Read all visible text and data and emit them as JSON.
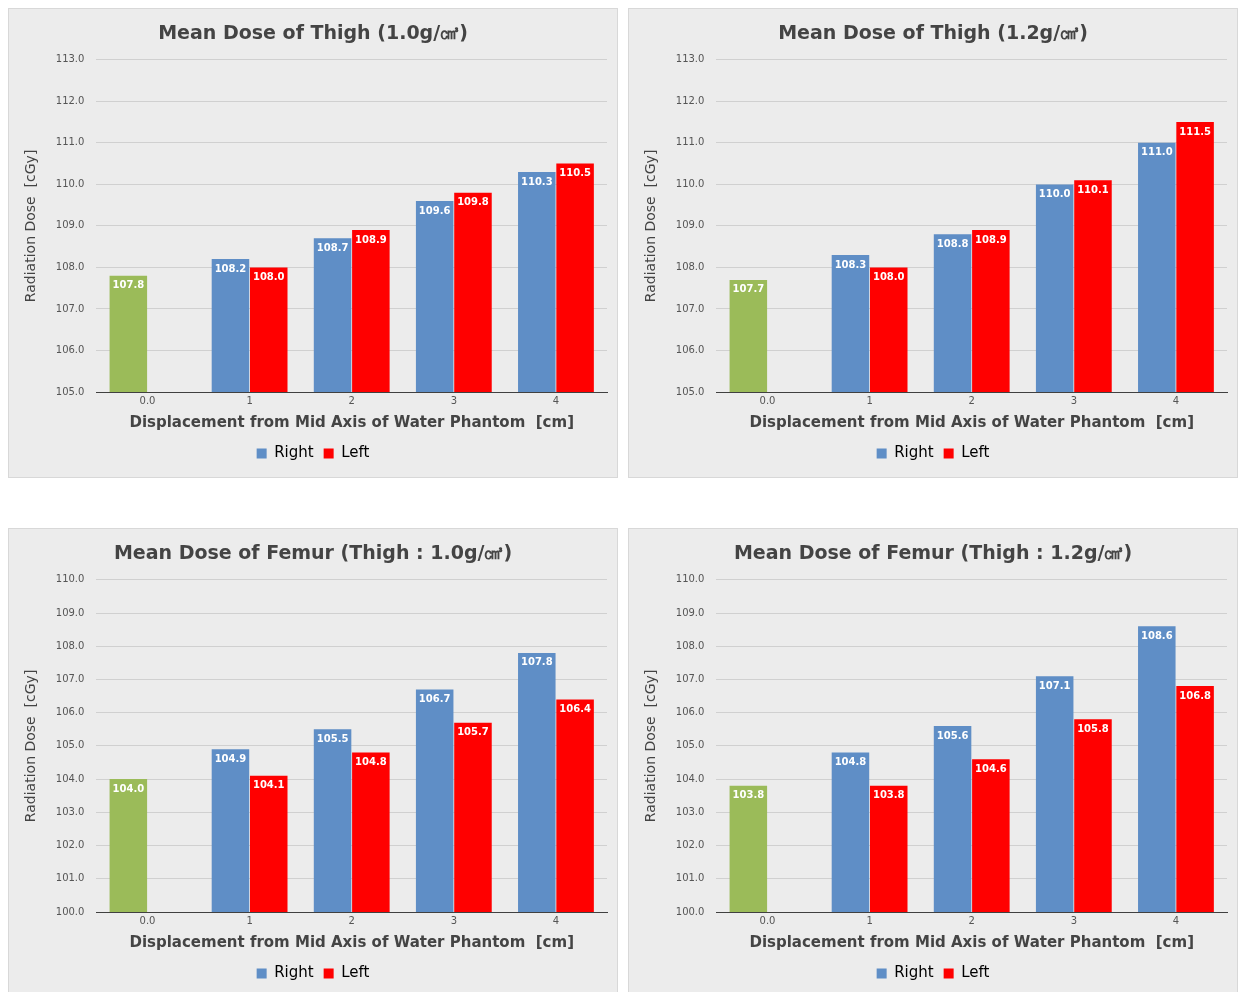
{
  "chart_data": [
    {
      "type": "bar",
      "title": "Mean Dose of Thigh (1.0g/㎤)",
      "xlabel": "Displacement from Mid Axis of Water Phantom  [cm]",
      "ylabel": "Radiation Dose  [cGy]",
      "categories": [
        "0.0",
        "1",
        "2",
        "3",
        "4"
      ],
      "series": [
        {
          "name": "Right",
          "color": "#5f8ec6",
          "colors": [
            "#9bbb59",
            "#5f8ec6",
            "#5f8ec6",
            "#5f8ec6",
            "#5f8ec6"
          ],
          "values": [
            107.8,
            108.2,
            108.7,
            109.6,
            110.3
          ],
          "value_labels": [
            "107.8",
            "108.2",
            "108.7",
            "109.6",
            "110.3"
          ]
        },
        {
          "name": "Left",
          "color": "#ff0000",
          "values": [
            null,
            108.0,
            108.9,
            109.8,
            110.5
          ],
          "value_labels": [
            null,
            "108.0",
            "108.9",
            "109.8",
            "110.5"
          ]
        }
      ],
      "ylim": [
        105,
        113
      ],
      "yticks": [
        {
          "value": 105,
          "label": "105.0"
        },
        {
          "value": 106,
          "label": "106.0"
        },
        {
          "value": 107,
          "label": "107.0"
        },
        {
          "value": 108,
          "label": "108.0"
        },
        {
          "value": 109,
          "label": "109.0"
        },
        {
          "value": 110,
          "label": "110.0"
        },
        {
          "value": 111,
          "label": "111.0"
        },
        {
          "value": 112,
          "label": "112.0"
        },
        {
          "value": 113,
          "label": "113.0"
        }
      ],
      "grid": "y",
      "legend": "bottom"
    },
    {
      "type": "bar",
      "title": "Mean Dose of Thigh (1.2g/㎤)",
      "xlabel": "Displacement from Mid Axis of Water Phantom  [cm]",
      "ylabel": "Radiation Dose  [cGy]",
      "categories": [
        "0.0",
        "1",
        "2",
        "3",
        "4"
      ],
      "series": [
        {
          "name": "Right",
          "color": "#5f8ec6",
          "colors": [
            "#9bbb59",
            "#5f8ec6",
            "#5f8ec6",
            "#5f8ec6",
            "#5f8ec6"
          ],
          "values": [
            107.7,
            108.3,
            108.8,
            110.0,
            111.0
          ],
          "value_labels": [
            "107.7",
            "108.3",
            "108.8",
            "110.0",
            "111.0"
          ]
        },
        {
          "name": "Left",
          "color": "#ff0000",
          "values": [
            null,
            108.0,
            108.9,
            110.1,
            111.5
          ],
          "value_labels": [
            null,
            "108.0",
            "108.9",
            "110.1",
            "111.5"
          ]
        }
      ],
      "ylim": [
        105,
        113
      ],
      "yticks": [
        {
          "value": 105,
          "label": "105.0"
        },
        {
          "value": 106,
          "label": "106.0"
        },
        {
          "value": 107,
          "label": "107.0"
        },
        {
          "value": 108,
          "label": "108.0"
        },
        {
          "value": 109,
          "label": "109.0"
        },
        {
          "value": 110,
          "label": "110.0"
        },
        {
          "value": 111,
          "label": "111.0"
        },
        {
          "value": 112,
          "label": "112.0"
        },
        {
          "value": 113,
          "label": "113.0"
        }
      ],
      "grid": "y",
      "legend": "bottom"
    },
    {
      "type": "bar",
      "title": "Mean Dose of Femur (Thigh : 1.0g/㎤)",
      "xlabel": "Displacement from Mid Axis of Water Phantom  [cm]",
      "ylabel": "Radiation Dose  [cGy]",
      "categories": [
        "0.0",
        "1",
        "2",
        "3",
        "4"
      ],
      "series": [
        {
          "name": "Right",
          "color": "#5f8ec6",
          "colors": [
            "#9bbb59",
            "#5f8ec6",
            "#5f8ec6",
            "#5f8ec6",
            "#5f8ec6"
          ],
          "values": [
            104.0,
            104.9,
            105.5,
            106.7,
            107.8
          ],
          "value_labels": [
            "104.0",
            "104.9",
            "105.5",
            "106.7",
            "107.8"
          ]
        },
        {
          "name": "Left",
          "color": "#ff0000",
          "values": [
            null,
            104.1,
            104.8,
            105.7,
            106.4
          ],
          "value_labels": [
            null,
            "104.1",
            "104.8",
            "105.7",
            "106.4"
          ]
        }
      ],
      "ylim": [
        100,
        110
      ],
      "yticks": [
        {
          "value": 100,
          "label": "100.0"
        },
        {
          "value": 101,
          "label": "101.0"
        },
        {
          "value": 102,
          "label": "102.0"
        },
        {
          "value": 103,
          "label": "103.0"
        },
        {
          "value": 104,
          "label": "104.0"
        },
        {
          "value": 105,
          "label": "105.0"
        },
        {
          "value": 106,
          "label": "106.0"
        },
        {
          "value": 107,
          "label": "107.0"
        },
        {
          "value": 108,
          "label": "108.0"
        },
        {
          "value": 109,
          "label": "109.0"
        },
        {
          "value": 110,
          "label": "110.0"
        }
      ],
      "grid": "y",
      "legend": "bottom"
    },
    {
      "type": "bar",
      "title": "Mean Dose of Femur (Thigh : 1.2g/㎤)",
      "xlabel": "Displacement from Mid Axis of Water Phantom  [cm]",
      "ylabel": "Radiation Dose  [cGy]",
      "categories": [
        "0.0",
        "1",
        "2",
        "3",
        "4"
      ],
      "series": [
        {
          "name": "Right",
          "color": "#5f8ec6",
          "colors": [
            "#9bbb59",
            "#5f8ec6",
            "#5f8ec6",
            "#5f8ec6",
            "#5f8ec6"
          ],
          "values": [
            103.8,
            104.8,
            105.6,
            107.1,
            108.6
          ],
          "value_labels": [
            "103.8",
            "104.8",
            "105.6",
            "107.1",
            "108.6"
          ]
        },
        {
          "name": "Left",
          "color": "#ff0000",
          "values": [
            null,
            103.8,
            104.6,
            105.8,
            106.8
          ],
          "value_labels": [
            null,
            "103.8",
            "104.6",
            "105.8",
            "106.8"
          ]
        }
      ],
      "ylim": [
        100,
        110
      ],
      "yticks": [
        {
          "value": 100,
          "label": "100.0"
        },
        {
          "value": 101,
          "label": "101.0"
        },
        {
          "value": 102,
          "label": "102.0"
        },
        {
          "value": 103,
          "label": "103.0"
        },
        {
          "value": 104,
          "label": "104.0"
        },
        {
          "value": 105,
          "label": "105.0"
        },
        {
          "value": 106,
          "label": "106.0"
        },
        {
          "value": 107,
          "label": "107.0"
        },
        {
          "value": 108,
          "label": "108.0"
        },
        {
          "value": 109,
          "label": "109.0"
        },
        {
          "value": 110,
          "label": "110.0"
        }
      ],
      "grid": "y",
      "legend": "bottom"
    }
  ]
}
